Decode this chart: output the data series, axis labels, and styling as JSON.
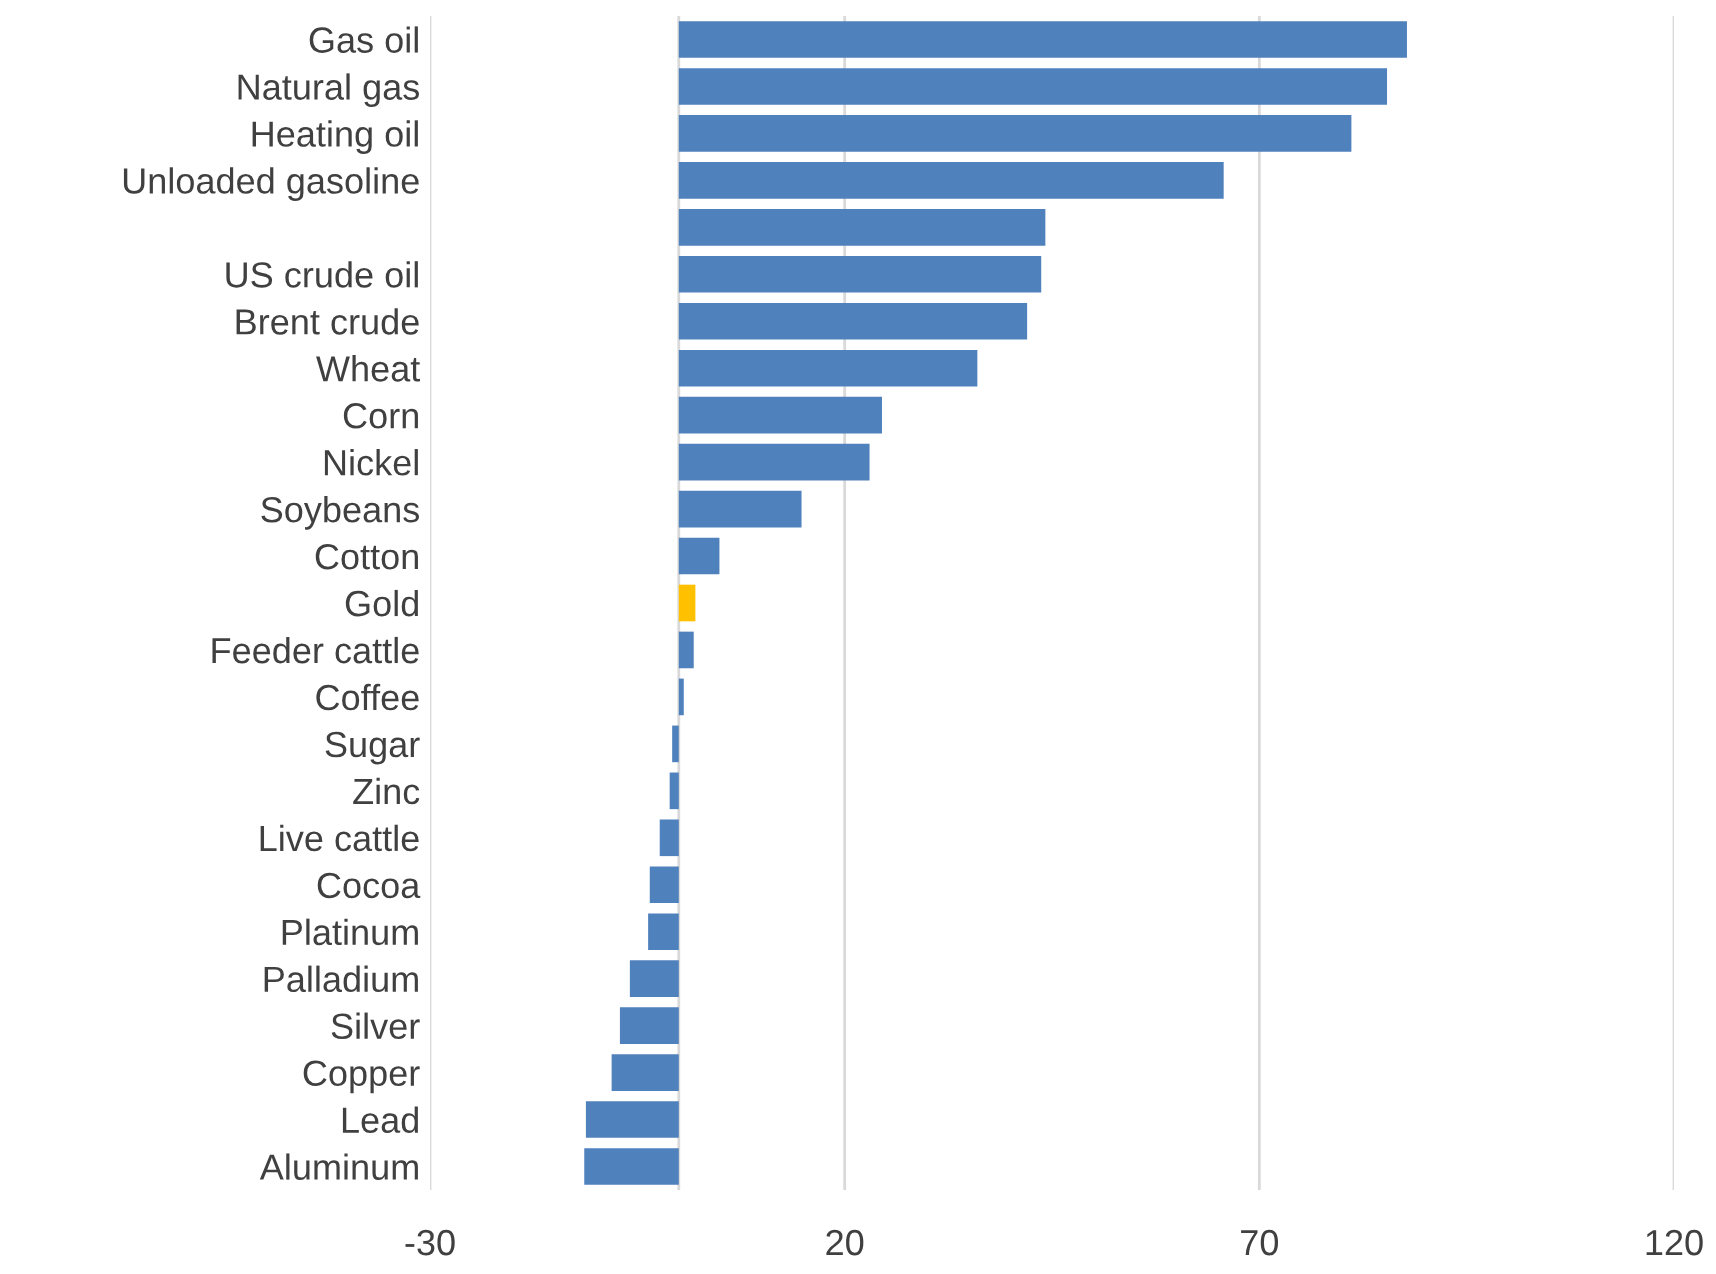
{
  "chart_data": {
    "type": "bar",
    "orientation": "horizontal",
    "categories": [
      "Gas oil",
      "Natural gas",
      "Heating oil",
      "Unloaded gasoline",
      null,
      "US crude oil",
      "Brent crude",
      "Wheat",
      "Corn",
      "Nickel",
      "Soybeans",
      "Cotton",
      "Gold",
      "Feeder cattle",
      "Coffee",
      "Sugar",
      "Zinc",
      "Live cattle",
      "Cocoa",
      "Platinum",
      "Palladium",
      "Silver",
      "Copper",
      "Lead",
      "Aluminum"
    ],
    "values": [
      87.8,
      85.4,
      81.1,
      65.7,
      44.2,
      43.7,
      42.0,
      36.0,
      24.5,
      23.0,
      14.8,
      4.9,
      2.0,
      1.8,
      0.6,
      -0.8,
      -1.1,
      -2.3,
      -3.5,
      -3.7,
      -5.9,
      -7.1,
      -8.1,
      -11.2,
      -11.4
    ],
    "colors": [
      "#4f81bd",
      "#4f81bd",
      "#4f81bd",
      "#4f81bd",
      "#4f81bd",
      "#4f81bd",
      "#4f81bd",
      "#4f81bd",
      "#4f81bd",
      "#4f81bd",
      "#4f81bd",
      "#4f81bd",
      "#ffc000",
      "#4f81bd",
      "#4f81bd",
      "#4f81bd",
      "#4f81bd",
      "#4f81bd",
      "#4f81bd",
      "#4f81bd",
      "#4f81bd",
      "#4f81bd",
      "#4f81bd",
      "#4f81bd",
      "#4f81bd"
    ],
    "xlim": [
      -30,
      120
    ],
    "xticks": [
      -30,
      20,
      70,
      120
    ],
    "grid": "x"
  }
}
